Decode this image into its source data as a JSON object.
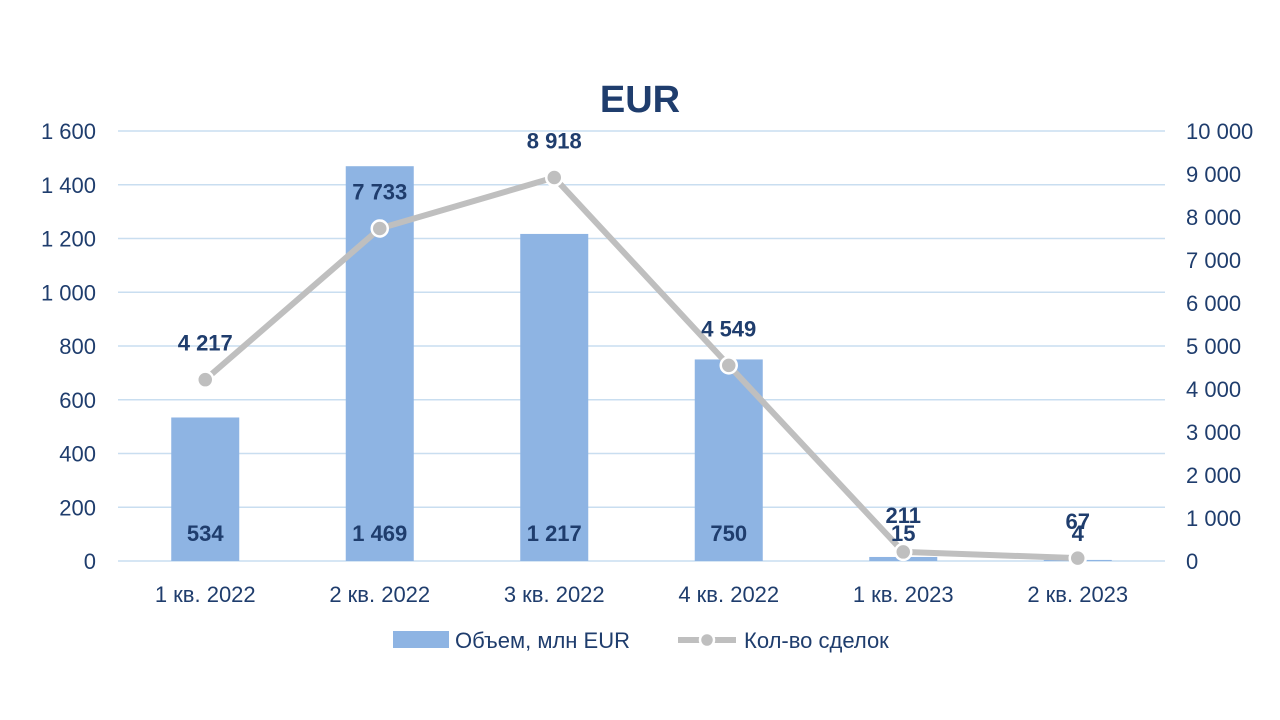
{
  "chart_data": {
    "type": "bar",
    "title": "EUR",
    "categories": [
      "1 кв. 2022",
      "2 кв. 2022",
      "3 кв. 2022",
      "4 кв. 2022",
      "1 кв. 2023",
      "2 кв. 2023"
    ],
    "series": [
      {
        "name": "Объем, млн EUR",
        "type": "bar",
        "axis": "left",
        "color": "#8eb4e3",
        "values": [
          534,
          1469,
          1217,
          750,
          15,
          4
        ],
        "labels": [
          "534",
          "1 469",
          "1 217",
          "750",
          "15",
          "4"
        ]
      },
      {
        "name": "Кол-во сделок",
        "type": "line",
        "axis": "right",
        "color": "#bfbfbf",
        "values": [
          4217,
          7733,
          8918,
          4549,
          211,
          67
        ],
        "labels": [
          "4 217",
          "7 733",
          "8 918",
          "4 549",
          "211",
          "67"
        ]
      }
    ],
    "y_left": {
      "min": 0,
      "max": 1600,
      "ticks": [
        0,
        200,
        400,
        600,
        800,
        1000,
        1200,
        1400,
        1600
      ],
      "tick_labels": [
        "0",
        "200",
        "400",
        "600",
        "800",
        "1 000",
        "1 200",
        "1 400",
        "1 600"
      ]
    },
    "y_right": {
      "min": 0,
      "max": 10000,
      "ticks": [
        0,
        1000,
        2000,
        3000,
        4000,
        5000,
        6000,
        7000,
        8000,
        9000,
        10000
      ],
      "tick_labels": [
        "0",
        "1 000",
        "2 000",
        "3 000",
        "4 000",
        "5 000",
        "6 000",
        "7 000",
        "8 000",
        "9 000",
        "10 000"
      ]
    },
    "grid": true,
    "legend": "bottom"
  }
}
